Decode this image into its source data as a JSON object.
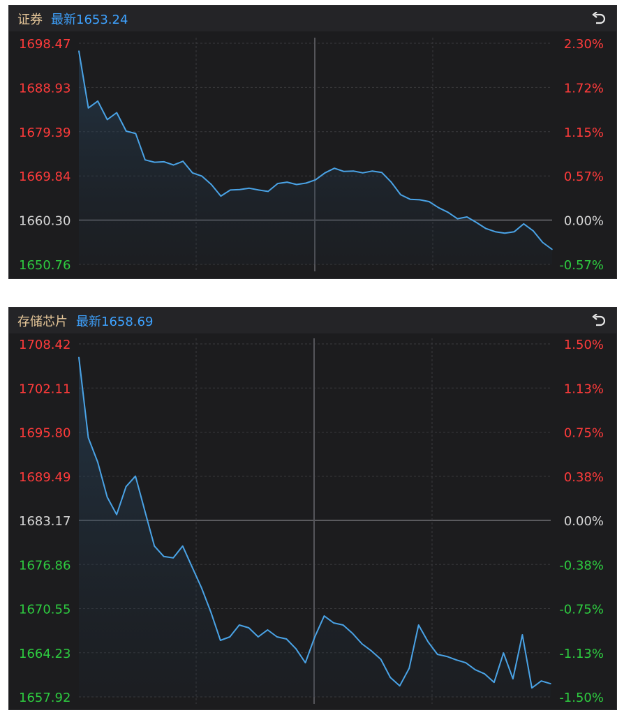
{
  "colors": {
    "background": "#1c1c1e",
    "header": "#242427",
    "line": "#4aa3e6",
    "up": "#ff3b3b",
    "down": "#2ecc40",
    "flat": "#d8d8d8",
    "grid": "#3a3a3d"
  },
  "icons": {
    "reset": "undo-arrow-icon"
  },
  "charts": [
    {
      "name": "证券",
      "latest_label": "最新1653.24",
      "left_labels": [
        "1698.47",
        "1688.93",
        "1679.39",
        "1669.84",
        "1660.30",
        "1650.76"
      ],
      "right_labels": [
        "2.30%",
        "1.72%",
        "1.15%",
        "0.57%",
        "0.00%",
        "-0.57%"
      ]
    },
    {
      "name": "存储芯片",
      "latest_label": "最新1658.69",
      "left_labels": [
        "1708.42",
        "1702.11",
        "1695.80",
        "1689.49",
        "1683.17",
        "1676.86",
        "1670.55",
        "1664.23",
        "1657.92"
      ],
      "right_labels": [
        "1.50%",
        "1.13%",
        "0.75%",
        "0.38%",
        "0.00%",
        "-0.38%",
        "-0.75%",
        "-1.13%",
        "-1.50%"
      ]
    }
  ],
  "chart_data": [
    {
      "type": "line",
      "title": "证券",
      "subtitle": "最新1653.24",
      "ylim": [
        1650.76,
        1698.47
      ],
      "prev_close": 1660.3,
      "x": [
        0,
        2,
        4,
        6,
        8,
        10,
        12,
        14,
        16,
        18,
        20,
        22,
        24,
        26,
        28,
        30,
        32,
        34,
        36,
        38,
        40,
        42,
        44,
        46,
        48,
        50,
        52,
        54,
        56,
        58,
        60,
        62,
        64,
        66,
        68,
        70,
        72,
        74,
        76,
        78,
        80,
        82,
        84,
        86,
        88,
        90,
        92,
        94,
        96,
        98,
        100
      ],
      "y": [
        1696.8,
        1684.5,
        1686.0,
        1682.0,
        1683.5,
        1679.5,
        1679.0,
        1673.3,
        1672.8,
        1672.9,
        1672.2,
        1673.0,
        1670.5,
        1669.8,
        1668.0,
        1665.5,
        1666.8,
        1666.9,
        1667.2,
        1666.8,
        1666.5,
        1668.2,
        1668.5,
        1668.0,
        1668.3,
        1669.0,
        1670.5,
        1671.5,
        1670.8,
        1670.9,
        1670.5,
        1670.9,
        1670.6,
        1668.5,
        1665.8,
        1664.8,
        1664.7,
        1664.3,
        1663.0,
        1662.0,
        1660.6,
        1661.0,
        1659.8,
        1658.5,
        1657.8,
        1657.5,
        1657.8,
        1659.5,
        1658.0,
        1655.5,
        1654.0
      ]
    },
    {
      "type": "line",
      "title": "存储芯片",
      "subtitle": "最新1658.69",
      "ylim": [
        1657.92,
        1708.42
      ],
      "prev_close": 1683.17,
      "x": [
        0,
        2,
        4,
        6,
        8,
        10,
        12,
        14,
        16,
        18,
        20,
        22,
        24,
        26,
        28,
        30,
        32,
        34,
        36,
        38,
        40,
        42,
        44,
        46,
        48,
        50,
        52,
        54,
        56,
        58,
        60,
        62,
        64,
        66,
        68,
        70,
        72,
        74,
        76,
        78,
        80,
        82,
        84,
        86,
        88,
        90,
        92,
        94,
        96,
        98,
        100
      ],
      "y": [
        1706.5,
        1695.0,
        1691.5,
        1686.5,
        1684.0,
        1688.0,
        1689.5,
        1684.5,
        1679.5,
        1678.0,
        1677.8,
        1679.5,
        1676.5,
        1673.5,
        1670.0,
        1666.0,
        1666.5,
        1668.2,
        1667.8,
        1666.5,
        1667.5,
        1666.5,
        1666.2,
        1664.8,
        1662.8,
        1666.5,
        1669.5,
        1668.5,
        1668.2,
        1667.0,
        1665.5,
        1664.5,
        1663.3,
        1660.7,
        1659.5,
        1662.0,
        1668.2,
        1665.8,
        1664.0,
        1663.7,
        1663.2,
        1662.8,
        1661.8,
        1661.2,
        1660.0,
        1664.2,
        1660.5,
        1666.8,
        1659.2,
        1660.2,
        1659.8
      ]
    }
  ]
}
